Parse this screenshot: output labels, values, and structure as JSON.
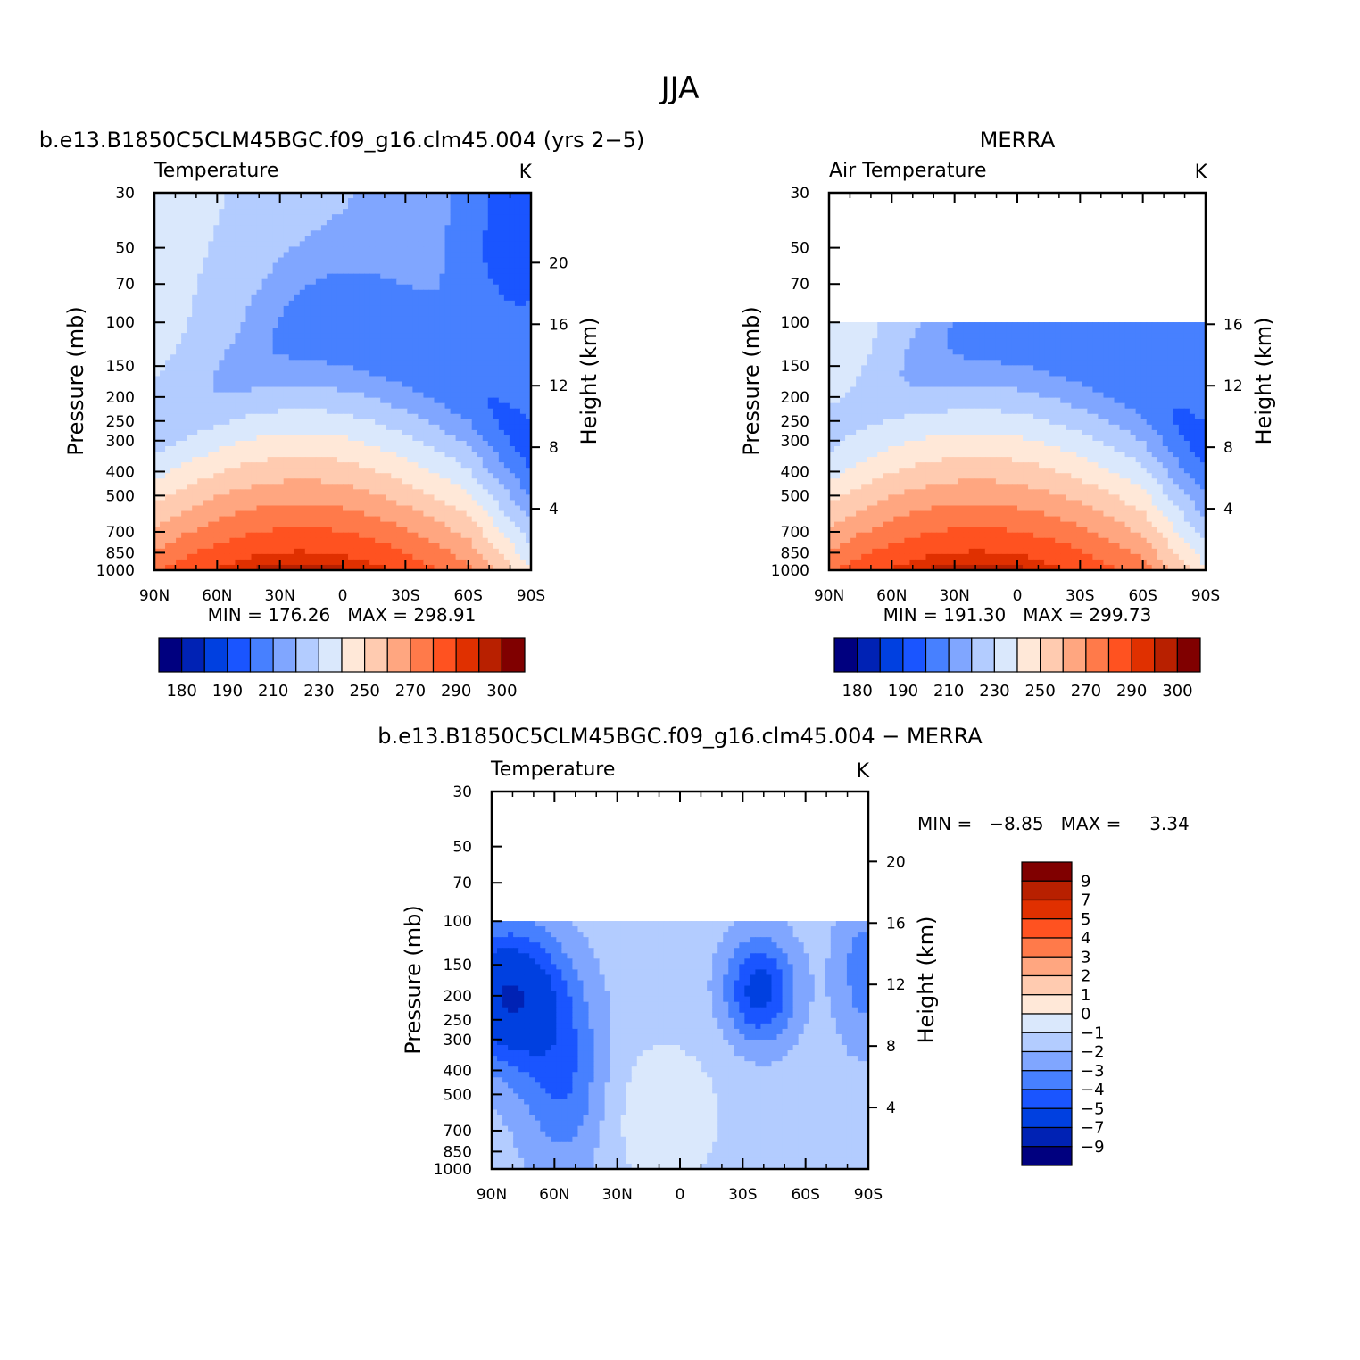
{
  "figure": {
    "title": "JJA"
  },
  "lat_ticks": [
    "90N",
    "60N",
    "30N",
    "0",
    "30S",
    "60S",
    "90S"
  ],
  "pressure_ticks": [
    "30",
    "50",
    "70",
    "100",
    "150",
    "200",
    "250",
    "300",
    "400",
    "500",
    "700",
    "850",
    "1000"
  ],
  "chart_data": [
    {
      "type": "heatmap",
      "title": "b.e13.B1850C5CLM45BGC.f09_g16.clm45.004 (yrs 2−5)",
      "variable": "Temperature",
      "units": "K",
      "xlabel": "",
      "ylabel": "Pressure (mb)",
      "y2label": "Height (km)",
      "x": [
        90,
        60,
        30,
        0,
        -30,
        -60,
        -90
      ],
      "y_pressure": [
        30,
        50,
        70,
        100,
        150,
        200,
        250,
        300,
        400,
        500,
        700,
        850,
        1000
      ],
      "height_ticks_km": [
        "20",
        "16",
        "12",
        "8",
        "4"
      ],
      "stats": "MIN = 176.26   MAX = 298.91",
      "min": 176.26,
      "max": 298.91,
      "colorbar": {
        "orientation": "horizontal",
        "labels": [
          "180",
          "190",
          "210",
          "230",
          "250",
          "270",
          "290",
          "300"
        ],
        "colors": [
          "#00007f",
          "#0022b4",
          "#0040e0",
          "#1a55ff",
          "#4780ff",
          "#80a6ff",
          "#b3ccff",
          "#dae8fc",
          "#ffe8d8",
          "#ffcbb0",
          "#ffa680",
          "#ff7a4a",
          "#ff5220",
          "#e03000",
          "#b82000",
          "#800000"
        ]
      }
    },
    {
      "type": "heatmap",
      "title": "MERRA",
      "variable": "Air Temperature",
      "units": "K",
      "xlabel": "",
      "ylabel": "Pressure (mb)",
      "y2label": "Height (km)",
      "x": [
        90,
        60,
        30,
        0,
        -30,
        -60,
        -90
      ],
      "y_pressure": [
        30,
        50,
        70,
        100,
        150,
        200,
        250,
        300,
        400,
        500,
        700,
        850,
        1000
      ],
      "height_ticks_km": [
        "16",
        "12",
        "8",
        "4"
      ],
      "data_top_pressure": 100,
      "stats": "MIN = 191.30   MAX = 299.73",
      "min": 191.3,
      "max": 299.73,
      "colorbar": {
        "orientation": "horizontal",
        "labels": [
          "180",
          "190",
          "210",
          "230",
          "250",
          "270",
          "290",
          "300"
        ],
        "colors": [
          "#00007f",
          "#0022b4",
          "#0040e0",
          "#1a55ff",
          "#4780ff",
          "#80a6ff",
          "#b3ccff",
          "#dae8fc",
          "#ffe8d8",
          "#ffcbb0",
          "#ffa680",
          "#ff7a4a",
          "#ff5220",
          "#e03000",
          "#b82000",
          "#800000"
        ]
      }
    },
    {
      "type": "heatmap",
      "title": "b.e13.B1850C5CLM45BGC.f09_g16.clm45.004 − MERRA",
      "variable": "Temperature",
      "units": "K",
      "xlabel": "",
      "ylabel": "Pressure (mb)",
      "y2label": "Height (km)",
      "x": [
        90,
        60,
        30,
        0,
        -30,
        -60,
        -90
      ],
      "y_pressure": [
        30,
        50,
        70,
        100,
        150,
        200,
        250,
        300,
        400,
        500,
        700,
        850,
        1000
      ],
      "height_ticks_km": [
        "20",
        "16",
        "12",
        "8",
        "4"
      ],
      "data_top_pressure": 100,
      "stats": "MIN =   −8.85   MAX =     3.34",
      "min": -8.85,
      "max": 3.34,
      "colorbar": {
        "orientation": "vertical",
        "labels": [
          "9",
          "7",
          "5",
          "4",
          "3",
          "2",
          "1",
          "0",
          "−1",
          "−2",
          "−3",
          "−4",
          "−5",
          "−7",
          "−9"
        ],
        "colors": [
          "#800000",
          "#b82000",
          "#e03000",
          "#ff5220",
          "#ff7a4a",
          "#ffa680",
          "#ffcbb0",
          "#ffe8d8",
          "#dae8fc",
          "#b3ccff",
          "#80a6ff",
          "#4780ff",
          "#1a55ff",
          "#0040e0",
          "#0022b4",
          "#00007f"
        ]
      }
    }
  ]
}
